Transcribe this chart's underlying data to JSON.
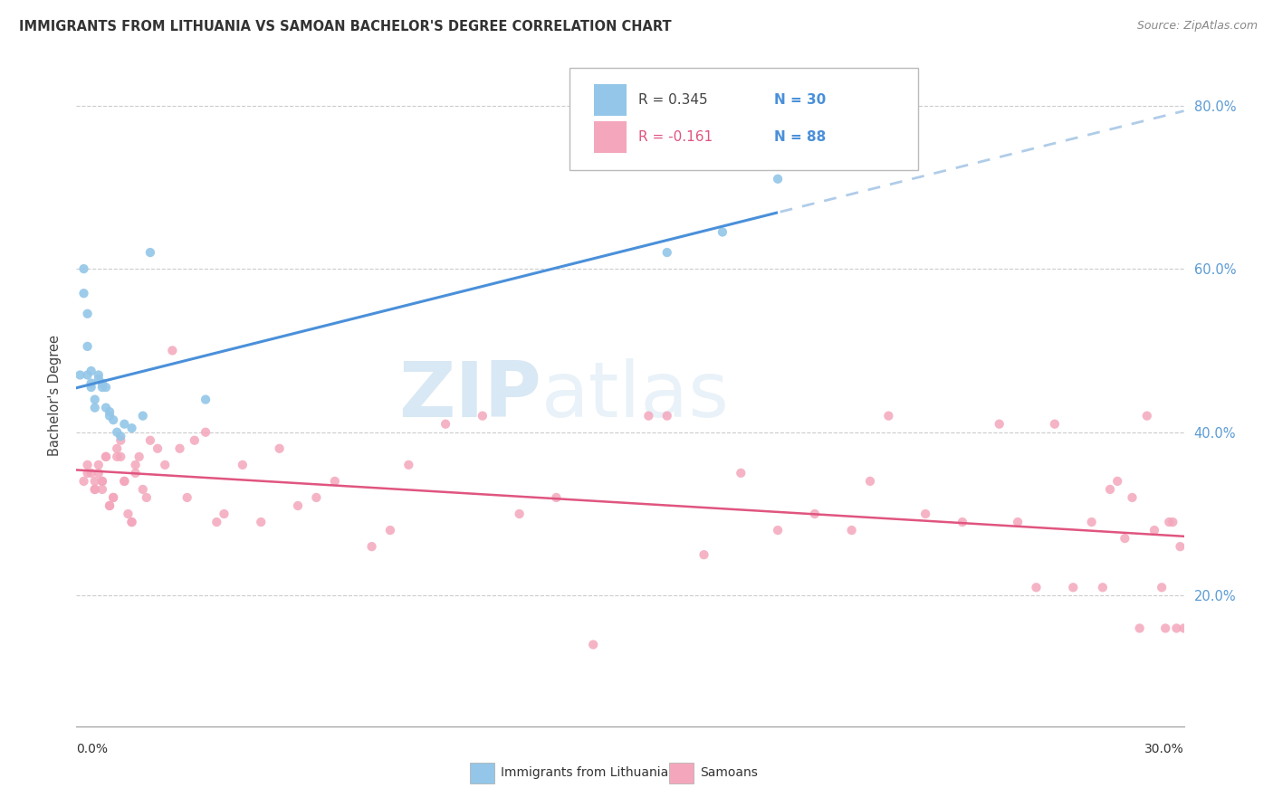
{
  "title": "IMMIGRANTS FROM LITHUANIA VS SAMOAN BACHELOR'S DEGREE CORRELATION CHART",
  "source": "Source: ZipAtlas.com",
  "ylabel": "Bachelor's Degree",
  "xlim": [
    0.0,
    0.3
  ],
  "ylim": [
    0.04,
    0.85
  ],
  "yticks": [
    0.2,
    0.4,
    0.6,
    0.8
  ],
  "ytick_labels": [
    "20.0%",
    "40.0%",
    "60.0%",
    "80.0%"
  ],
  "blue_color": "#93c6e8",
  "pink_color": "#f4a7bc",
  "blue_line_color": "#4a90d9",
  "pink_line_color": "#e05580",
  "dashed_line_color": "#b0cce8",
  "watermark_zip": "ZIP",
  "watermark_atlas": "atlas",
  "legend_label_blue": "Immigrants from Lithuania",
  "legend_label_pink": "Samoans",
  "blue_R_label": "R = 0.345",
  "blue_N_label": "N = 30",
  "pink_R_label": "R = -0.161",
  "pink_N_label": "N = 88",
  "blue_scatter_x": [
    0.001,
    0.002,
    0.002,
    0.003,
    0.003,
    0.003,
    0.004,
    0.004,
    0.004,
    0.005,
    0.005,
    0.006,
    0.006,
    0.007,
    0.007,
    0.008,
    0.008,
    0.009,
    0.009,
    0.01,
    0.011,
    0.012,
    0.013,
    0.015,
    0.018,
    0.02,
    0.035,
    0.16,
    0.175,
    0.19
  ],
  "blue_scatter_y": [
    0.47,
    0.6,
    0.57,
    0.545,
    0.505,
    0.47,
    0.475,
    0.46,
    0.455,
    0.44,
    0.43,
    0.47,
    0.465,
    0.46,
    0.455,
    0.455,
    0.43,
    0.425,
    0.42,
    0.415,
    0.4,
    0.395,
    0.41,
    0.405,
    0.42,
    0.62,
    0.44,
    0.62,
    0.645,
    0.71
  ],
  "pink_scatter_x": [
    0.002,
    0.003,
    0.003,
    0.004,
    0.005,
    0.005,
    0.005,
    0.006,
    0.006,
    0.007,
    0.007,
    0.007,
    0.008,
    0.008,
    0.009,
    0.009,
    0.01,
    0.01,
    0.011,
    0.011,
    0.012,
    0.012,
    0.013,
    0.013,
    0.014,
    0.015,
    0.015,
    0.016,
    0.016,
    0.017,
    0.018,
    0.019,
    0.02,
    0.022,
    0.024,
    0.026,
    0.028,
    0.03,
    0.032,
    0.035,
    0.038,
    0.04,
    0.045,
    0.05,
    0.055,
    0.06,
    0.065,
    0.07,
    0.08,
    0.085,
    0.09,
    0.1,
    0.11,
    0.12,
    0.13,
    0.14,
    0.155,
    0.16,
    0.17,
    0.18,
    0.19,
    0.2,
    0.21,
    0.215,
    0.22,
    0.23,
    0.24,
    0.25,
    0.255,
    0.26,
    0.265,
    0.27,
    0.275,
    0.278,
    0.28,
    0.282,
    0.284,
    0.286,
    0.288,
    0.29,
    0.292,
    0.294,
    0.295,
    0.296,
    0.297,
    0.298,
    0.299,
    0.3
  ],
  "pink_scatter_y": [
    0.34,
    0.35,
    0.36,
    0.35,
    0.33,
    0.33,
    0.34,
    0.35,
    0.36,
    0.33,
    0.34,
    0.34,
    0.37,
    0.37,
    0.31,
    0.31,
    0.32,
    0.32,
    0.37,
    0.38,
    0.39,
    0.37,
    0.34,
    0.34,
    0.3,
    0.29,
    0.29,
    0.35,
    0.36,
    0.37,
    0.33,
    0.32,
    0.39,
    0.38,
    0.36,
    0.5,
    0.38,
    0.32,
    0.39,
    0.4,
    0.29,
    0.3,
    0.36,
    0.29,
    0.38,
    0.31,
    0.32,
    0.34,
    0.26,
    0.28,
    0.36,
    0.41,
    0.42,
    0.3,
    0.32,
    0.14,
    0.42,
    0.42,
    0.25,
    0.35,
    0.28,
    0.3,
    0.28,
    0.34,
    0.42,
    0.3,
    0.29,
    0.41,
    0.29,
    0.21,
    0.41,
    0.21,
    0.29,
    0.21,
    0.33,
    0.34,
    0.27,
    0.32,
    0.16,
    0.42,
    0.28,
    0.21,
    0.16,
    0.29,
    0.29,
    0.16,
    0.26,
    0.16
  ]
}
